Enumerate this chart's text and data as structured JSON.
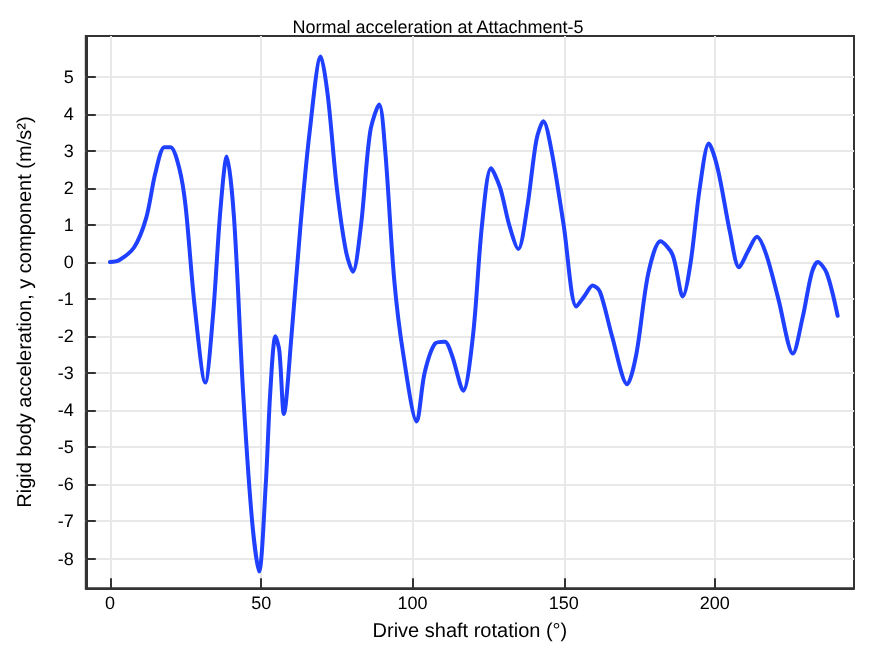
{
  "chart_data": {
    "type": "line",
    "title": "Normal acceleration at Attachment-5",
    "xlabel": "Drive shaft rotation (°)",
    "ylabel": "Rigid body acceleration, y component (m/s²)",
    "series": [
      {
        "color": "#2040ff",
        "x": [
          0,
          3,
          8,
          12,
          15,
          18,
          20,
          23,
          25,
          28,
          31.5,
          34,
          36.5,
          38.6,
          41,
          44,
          47,
          49.3,
          51.5,
          53,
          54.7,
          56,
          57.5,
          60,
          63,
          66,
          69.7,
          72,
          75,
          78,
          80.3,
          83,
          86,
          89,
          91,
          94,
          97,
          101.4,
          104,
          107.5,
          110.7,
          113,
          116.8,
          120,
          123,
          126,
          129,
          132,
          135,
          138,
          141,
          143.3,
          146,
          150,
          154.2,
          157,
          159.6,
          162,
          166,
          171,
          174,
          178,
          182,
          186,
          189.4,
          192,
          195,
          198,
          201,
          205,
          208,
          211,
          213.9,
          217,
          221,
          225.8,
          229,
          232,
          234,
          237,
          240.6
        ],
        "values": [
          0,
          0.05,
          0.4,
          1.2,
          2.4,
          3.1,
          3.1,
          2.5,
          1.5,
          -1.2,
          -3.25,
          -1.5,
          1.4,
          2.85,
          1.2,
          -3.5,
          -7,
          -8.35,
          -6,
          -3.5,
          -2,
          -2.4,
          -4.1,
          -2,
          1,
          3.5,
          5.55,
          4.5,
          2,
          0.3,
          -0.26,
          1,
          3.5,
          4.25,
          3,
          -0.5,
          -2.5,
          -4.3,
          -3,
          -2.2,
          -2.15,
          -2.5,
          -3.47,
          -2,
          1,
          2.53,
          2,
          1,
          0.35,
          1.5,
          3.3,
          3.8,
          3,
          1,
          -1.2,
          -0.9,
          -0.63,
          -0.8,
          -2,
          -3.3,
          -2.5,
          -0.3,
          0.56,
          0.2,
          -0.93,
          0,
          2,
          3.2,
          2.5,
          0.8,
          -0.14,
          0.3,
          0.68,
          0.2,
          -1,
          -2.47,
          -1.5,
          -0.3,
          0,
          -0.3,
          -1.45
        ]
      }
    ],
    "xlim": [
      -8,
      246
    ],
    "ylim": [
      -8.8,
      6.1
    ],
    "xticks": [
      0,
      50,
      100,
      150,
      200
    ],
    "yticks": [
      -8,
      -7,
      -6,
      -5,
      -4,
      -3,
      -2,
      -1,
      0,
      1,
      2,
      3,
      4,
      5
    ],
    "grid": true,
    "marker": "none",
    "line_style": "solid"
  }
}
